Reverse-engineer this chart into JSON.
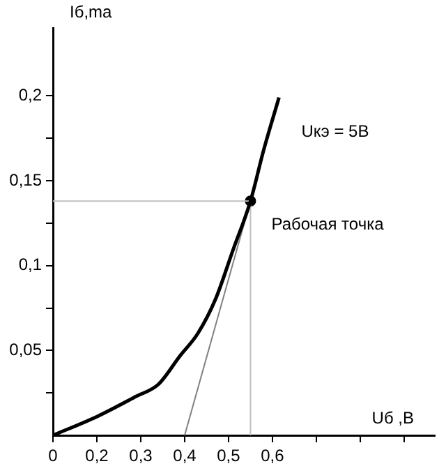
{
  "chart_data": {
    "type": "line",
    "xlabel": "Uб ,B",
    "ylabel": "Iб,ma",
    "xlim": [
      0.1,
      0.97
    ],
    "ylim": [
      0,
      0.24
    ],
    "xticks": [
      {
        "value": 0.1,
        "label": "0"
      },
      {
        "value": 0.2,
        "label": "0,2"
      },
      {
        "value": 0.3,
        "label": "0,3"
      },
      {
        "value": 0.4,
        "label": "0,4"
      },
      {
        "value": 0.5,
        "label": "0,5"
      },
      {
        "value": 0.6,
        "label": "0,6"
      },
      {
        "value": 0.7,
        "label": null
      },
      {
        "value": 0.8,
        "label": null
      },
      {
        "value": 0.9,
        "label": null
      }
    ],
    "yticks": [
      {
        "value": 0.025,
        "label": null
      },
      {
        "value": 0.05,
        "label": "0,05"
      },
      {
        "value": 0.075,
        "label": null
      },
      {
        "value": 0.1,
        "label": "0,1"
      },
      {
        "value": 0.125,
        "label": null
      },
      {
        "value": 0.15,
        "label": "0,15"
      },
      {
        "value": 0.175,
        "label": null
      },
      {
        "value": 0.2,
        "label": "0,2"
      }
    ],
    "grid": false,
    "legend": false,
    "marker": "none",
    "line_style": "solid",
    "series": [
      {
        "name": "Uкэ = 5В",
        "color": "#000000",
        "x": [
          0.1,
          0.2,
          0.29,
          0.34,
          0.39,
          0.43,
          0.47,
          0.51,
          0.55,
          0.58,
          0.615
        ],
        "values": [
          0,
          0.011,
          0.023,
          0.03,
          0.047,
          0.06,
          0.08,
          0.109,
          0.138,
          0.168,
          0.199
        ]
      },
      {
        "color": "#808080",
        "x": [
          0.4,
          0.55
        ],
        "values": [
          0,
          0.138
        ]
      },
      {
        "color": "#c0c0c0",
        "x": [
          0.1,
          0.55,
          0.55
        ],
        "values": [
          0.138,
          0.138,
          0
        ]
      },
      {
        "type": "scatter",
        "marker": "circle",
        "color": "#000000",
        "x": [
          0.55
        ],
        "values": [
          0.138
        ]
      }
    ],
    "annotations": [
      {
        "text": "Рабочая точка",
        "x": 0.55,
        "y": 0.138
      }
    ]
  }
}
